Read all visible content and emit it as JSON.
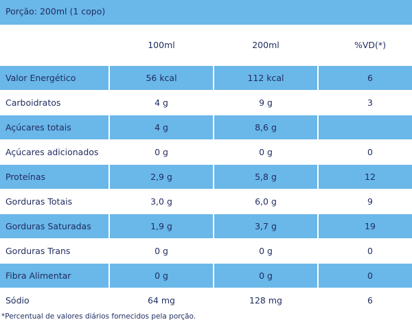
{
  "header": {
    "title": "Porção: 200ml (1 copo)"
  },
  "table": {
    "columns": [
      "100ml",
      "200ml",
      "%VD(*)"
    ],
    "rows": [
      [
        "Valor Energético",
        "56 kcal",
        "112 kcal",
        "6"
      ],
      [
        "Carboidratos",
        "4 g",
        "9 g",
        "3"
      ],
      [
        "Açúcares totais",
        "4 g",
        "8,6 g",
        null
      ],
      [
        "Açúcares adicionados",
        "0 g",
        "0 g",
        "0"
      ],
      [
        "Proteínas",
        "2,9 g",
        "5,8 g",
        "12"
      ],
      [
        "Gorduras Totais",
        "3,0 g",
        "6,0 g",
        "9"
      ],
      [
        "Gorduras Saturadas",
        "1,9 g",
        "3,7 g",
        "19"
      ],
      [
        "Gorduras Trans",
        "0 g",
        "0 g",
        "0"
      ],
      [
        "Fibra Alimentar",
        "0 g",
        "0 g",
        "0"
      ],
      [
        "Sódio",
        "64 mg",
        "128 mg",
        "6"
      ]
    ]
  },
  "footnote": "*Percentual de valores diários fornecidos pela porção."
}
